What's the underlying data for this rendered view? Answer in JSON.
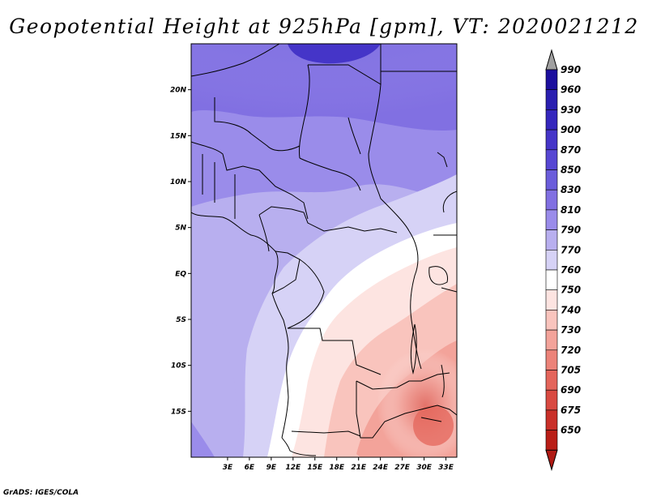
{
  "title": "Geopotential Height at 925hPa [gpm], VT: 2020021212",
  "footer": "GrADS: IGES/COLA",
  "map": {
    "lon_range": [
      -2,
      34.5
    ],
    "lat_range": [
      -20,
      25
    ],
    "lat_ticks": [
      {
        "value": 20,
        "label": "20N"
      },
      {
        "value": 15,
        "label": "15N"
      },
      {
        "value": 10,
        "label": "10N"
      },
      {
        "value": 5,
        "label": "5N"
      },
      {
        "value": 0,
        "label": "EQ"
      },
      {
        "value": -5,
        "label": "5S"
      },
      {
        "value": -10,
        "label": "10S"
      },
      {
        "value": -15,
        "label": "15S"
      }
    ],
    "lon_ticks": [
      {
        "value": 3,
        "label": "3E"
      },
      {
        "value": 6,
        "label": "6E"
      },
      {
        "value": 9,
        "label": "9E"
      },
      {
        "value": 12,
        "label": "12E"
      },
      {
        "value": 15,
        "label": "15E"
      },
      {
        "value": 18,
        "label": "18E"
      },
      {
        "value": 21,
        "label": "21E"
      },
      {
        "value": 24,
        "label": "24E"
      },
      {
        "value": 27,
        "label": "27E"
      },
      {
        "value": 30,
        "label": "30E"
      },
      {
        "value": 33,
        "label": "33E"
      }
    ]
  },
  "colorbar": {
    "levels": [
      "990",
      "960",
      "930",
      "900",
      "870",
      "850",
      "830",
      "810",
      "790",
      "770",
      "760",
      "750",
      "740",
      "730",
      "720",
      "705",
      "690",
      "675",
      "650"
    ],
    "colors": [
      "#1c0f9e",
      "#2a1fb0",
      "#3527bd",
      "#4535c8",
      "#5747d3",
      "#6b5ddb",
      "#8170e2",
      "#9a8cea",
      "#b8afef",
      "#d6d2f6",
      "#ffffff",
      "#fde4e1",
      "#f9c4bd",
      "#f3a39a",
      "#ec8379",
      "#e4655b",
      "#d94a41",
      "#c93029",
      "#b91e17"
    ],
    "top_arrow_color": "#a0a0a0",
    "bottom_arrow_color": "#b01a14"
  }
}
